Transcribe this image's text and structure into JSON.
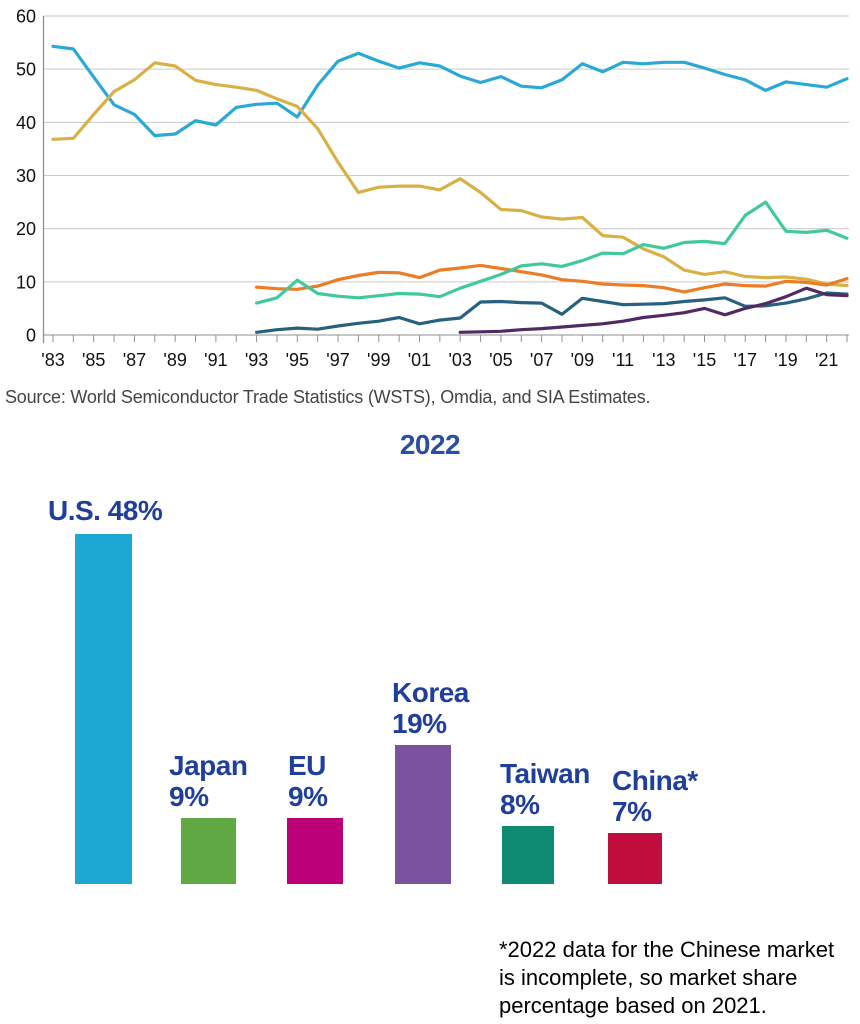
{
  "source_note": {
    "text": "Source: World Semiconductor Trade Statistics (WSTS), Omdia, and SIA Estimates."
  },
  "chart_data": [
    {
      "type": "line",
      "title": "",
      "ylim": [
        0,
        60
      ],
      "y_ticks": [
        "0",
        "10",
        "20",
        "30",
        "40",
        "50",
        "60"
      ],
      "x_tick_labels": [
        "'83",
        "'85",
        "'87",
        "'89",
        "'91",
        "'93",
        "'95",
        "'97",
        "'99",
        "'01",
        "'03",
        "'05",
        "'07",
        "'09",
        "'11",
        "'13",
        "'15",
        "'17",
        "'19",
        "'21"
      ],
      "x_range_years": [
        1983,
        2022
      ],
      "grid": "horizontal",
      "legend": "none",
      "grid_color": "#c9c9c9",
      "axis_color": "#8f8f8f",
      "tick_label_color": "#111111",
      "series": [
        {
          "id": "cyan",
          "color": "#2BA9D6",
          "start_year": 1983,
          "values": [
            54.3,
            53.8,
            48.5,
            43.3,
            41.5,
            37.5,
            37.8,
            40.3,
            39.5,
            42.8,
            43.4,
            43.6,
            41.0,
            47.0,
            51.5,
            53.0,
            51.5,
            50.2,
            51.2,
            50.6,
            48.7,
            47.5,
            48.6,
            46.8,
            46.5,
            48.0,
            51.0,
            49.5,
            51.3,
            51.0,
            51.3,
            51.3,
            50.2,
            49.0,
            48.0,
            46.0,
            47.6,
            47.1,
            46.6,
            48.2
          ]
        },
        {
          "id": "gold",
          "color": "#D8B144",
          "start_year": 1983,
          "values": [
            36.8,
            37.0,
            41.5,
            45.8,
            48.0,
            51.2,
            50.6,
            47.9,
            47.1,
            46.6,
            46.0,
            44.4,
            43.0,
            38.8,
            32.5,
            26.8,
            27.8,
            28.0,
            28.0,
            27.3,
            29.4,
            26.8,
            23.6,
            23.4,
            22.2,
            21.8,
            22.1,
            18.7,
            18.4,
            16.2,
            14.7,
            12.2,
            11.4,
            11.9,
            11.0,
            10.8,
            10.9,
            10.5,
            9.6,
            9.3
          ]
        },
        {
          "id": "orange",
          "color": "#EC7C25",
          "start_year": 1993,
          "values": [
            9.0,
            8.7,
            8.6,
            9.2,
            10.4,
            11.2,
            11.8,
            11.7,
            10.8,
            12.2,
            12.6,
            13.1,
            12.5,
            11.9,
            11.3,
            10.4,
            10.1,
            9.6,
            9.4,
            9.3,
            8.9,
            8.1,
            8.9,
            9.6,
            9.3,
            9.2,
            10.1,
            9.9,
            9.4,
            10.6
          ]
        },
        {
          "id": "mint",
          "color": "#41C99D",
          "start_year": 1993,
          "values": [
            6.0,
            7.0,
            10.3,
            7.8,
            7.3,
            7.0,
            7.4,
            7.8,
            7.7,
            7.2,
            8.8,
            10.1,
            11.4,
            13.0,
            13.4,
            12.9,
            14.0,
            15.4,
            15.3,
            17.0,
            16.3,
            17.4,
            17.6,
            17.2,
            22.5,
            25.0,
            19.5,
            19.3,
            19.7,
            18.2
          ]
        },
        {
          "id": "dark-teal",
          "color": "#27617F",
          "start_year": 1993,
          "values": [
            0.5,
            1.0,
            1.3,
            1.1,
            1.7,
            2.2,
            2.6,
            3.3,
            2.1,
            2.8,
            3.2,
            6.2,
            6.3,
            6.1,
            6.0,
            3.9,
            6.9,
            6.3,
            5.7,
            5.8,
            5.9,
            6.3,
            6.6,
            7.0,
            5.4,
            5.5,
            6.0,
            6.8,
            7.9,
            7.7
          ]
        },
        {
          "id": "purple",
          "color": "#522A62",
          "start_year": 2003,
          "values": [
            0.5,
            0.6,
            0.7,
            1.0,
            1.2,
            1.5,
            1.8,
            2.1,
            2.6,
            3.3,
            3.7,
            4.2,
            5.0,
            3.8,
            5.0,
            5.9,
            7.2,
            8.8,
            7.6,
            7.4
          ]
        }
      ]
    },
    {
      "type": "bar",
      "title": "2022",
      "title_color": "#2B4EA2",
      "label_color": "#1F3F9B",
      "categories": [
        "U.S.",
        "Japan",
        "EU",
        "Korea",
        "Taiwan",
        "China*"
      ],
      "values": [
        48,
        9,
        9,
        19,
        8,
        7
      ],
      "bars": [
        {
          "label": "U.S.",
          "value": 48,
          "value_label": "48%",
          "color": "#1CA8D3"
        },
        {
          "label": "Japan",
          "value": 9,
          "value_label": "9%",
          "color": "#5FA844"
        },
        {
          "label": "EU",
          "value": 9,
          "value_label": "9%",
          "color": "#BC0078"
        },
        {
          "label": "Korea",
          "value": 19,
          "value_label": "19%",
          "color": "#7A529F"
        },
        {
          "label": "Taiwan",
          "value": 8,
          "value_label": "8%",
          "color": "#0F8A73"
        },
        {
          "label": "China*",
          "value": 7,
          "value_label": "7%",
          "color": "#BF0D3E"
        }
      ],
      "footnote": "*2022 data for the Chinese market\nis incomplete, so market share\npercentage based on 2021."
    }
  ]
}
